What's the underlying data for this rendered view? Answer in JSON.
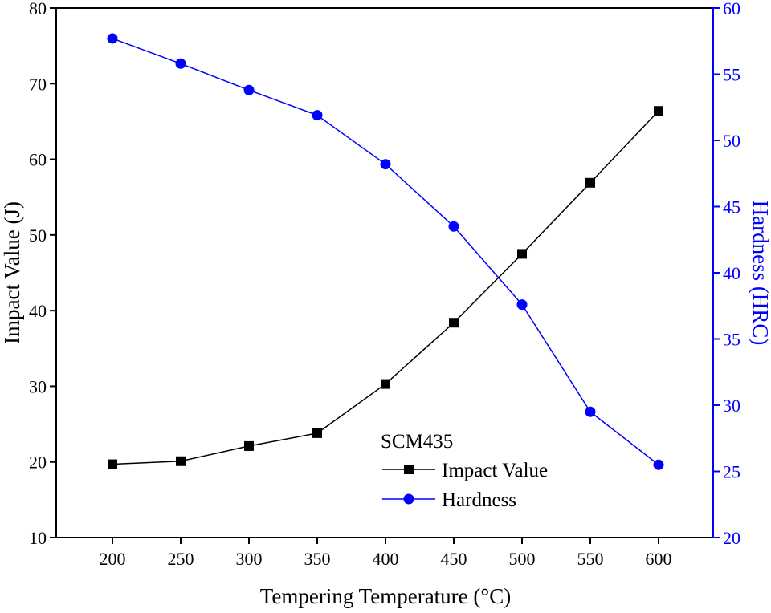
{
  "chart_data": {
    "type": "line",
    "title": "",
    "xlabel": "Tempering Temperature (°C)",
    "ylabel": "Impact Value (J)",
    "y2label": "Hardness (HRC)",
    "x": [
      200,
      250,
      300,
      350,
      400,
      450,
      500,
      550,
      600
    ],
    "xticks": [
      200,
      250,
      300,
      350,
      400,
      450,
      500,
      550,
      600
    ],
    "xlim": [
      160,
      640
    ],
    "ylim": [
      10,
      80
    ],
    "yticks": [
      10,
      20,
      30,
      40,
      50,
      60,
      70,
      80
    ],
    "y2lim": [
      20,
      60
    ],
    "y2ticks": [
      20,
      25,
      30,
      35,
      40,
      45,
      50,
      55,
      60
    ],
    "grid": false,
    "legend": {
      "title": "SCM435",
      "placement": "bottom-center"
    },
    "series": [
      {
        "name": "Impact Value",
        "axis": "left",
        "marker": "square",
        "color": "#000000",
        "values": [
          19.7,
          20.1,
          22.1,
          23.8,
          30.3,
          38.4,
          47.5,
          56.9,
          66.4
        ]
      },
      {
        "name": "Hardness",
        "axis": "right",
        "marker": "circle",
        "color": "#0000ff",
        "values": [
          57.7,
          55.8,
          53.8,
          51.9,
          48.2,
          43.5,
          37.6,
          29.5,
          25.5
        ]
      }
    ]
  }
}
